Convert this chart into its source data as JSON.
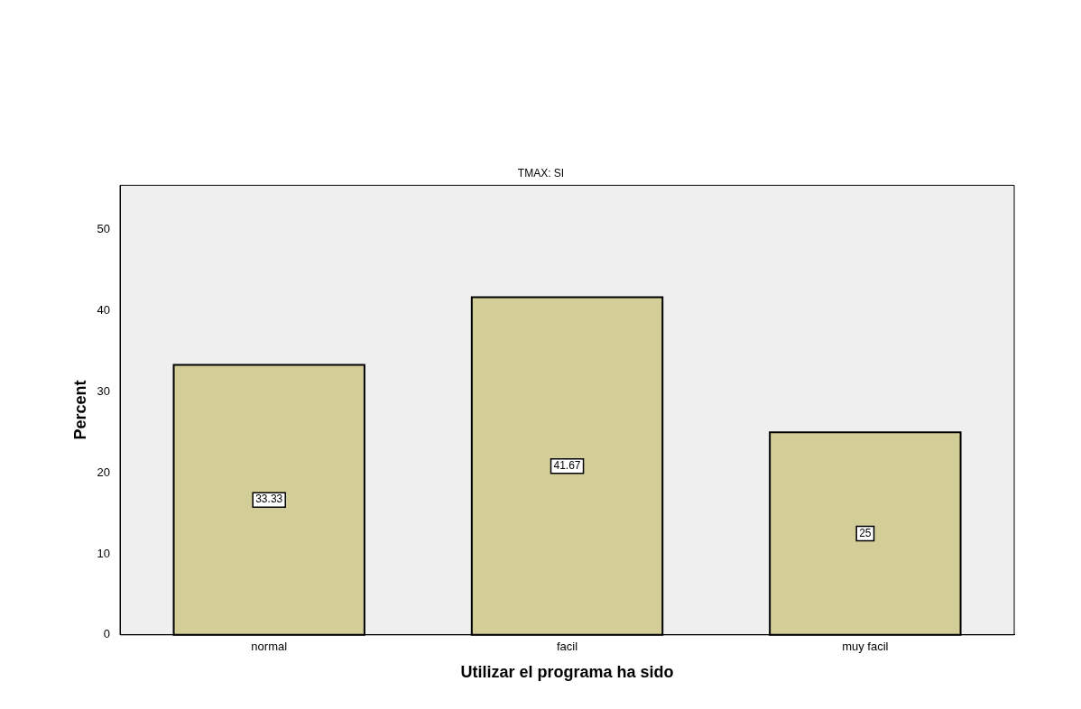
{
  "chart_data": {
    "type": "bar",
    "title": "TMAX: SI",
    "xlabel": "Utilizar el programa ha sido",
    "ylabel": "Percent",
    "categories": [
      "normal",
      "facil",
      "muy facil"
    ],
    "values": [
      33.33,
      41.67,
      25
    ],
    "color": "#d3cd98",
    "ylim": [
      0,
      55.5
    ],
    "yticks": [
      0,
      10,
      20,
      30,
      40,
      50
    ],
    "grid": false,
    "legend": false,
    "data_labels": true
  }
}
